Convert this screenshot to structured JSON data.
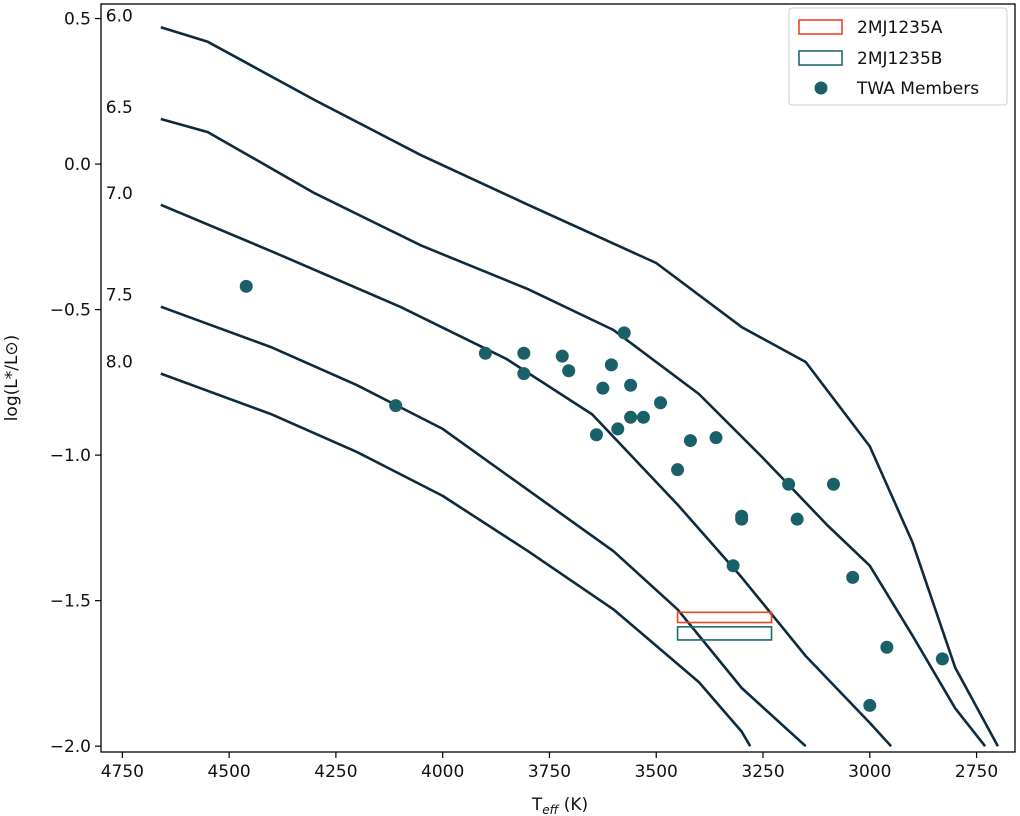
{
  "chart_data": {
    "type": "scatter",
    "xlabel_main": "T",
    "xlabel_sub": "eff",
    "xlabel_unit": " (K)",
    "ylabel": "log(L*/L⊙)",
    "xlim": [
      4800,
      2660
    ],
    "ylim": [
      -2.02,
      0.55
    ],
    "x_inverted": true,
    "xticks": [
      4750,
      4500,
      4250,
      4000,
      3750,
      3500,
      3250,
      3000,
      2750
    ],
    "yticks": [
      0.5,
      0.0,
      -0.5,
      -1.0,
      -1.5,
      -2.0
    ],
    "ytick_labels": [
      "0.5",
      "0.0",
      "−0.5",
      "−1.0",
      "−1.5",
      "−2.0"
    ],
    "grid": false,
    "legend_position": "top-right",
    "isochrones": [
      {
        "label": "6.0",
        "points": [
          [
            4660,
            0.47
          ],
          [
            4550,
            0.42
          ],
          [
            4300,
            0.22
          ],
          [
            4050,
            0.03
          ],
          [
            3800,
            -0.14
          ],
          [
            3500,
            -0.34
          ],
          [
            3300,
            -0.56
          ],
          [
            3150,
            -0.68
          ],
          [
            3000,
            -0.97
          ],
          [
            2900,
            -1.3
          ],
          [
            2800,
            -1.73
          ],
          [
            2700,
            -2.0
          ]
        ]
      },
      {
        "label": "6.5",
        "points": [
          [
            4660,
            0.155
          ],
          [
            4550,
            0.11
          ],
          [
            4300,
            -0.1
          ],
          [
            4050,
            -0.28
          ],
          [
            3800,
            -0.43
          ],
          [
            3600,
            -0.57
          ],
          [
            3400,
            -0.79
          ],
          [
            3250,
            -1.01
          ],
          [
            3100,
            -1.24
          ],
          [
            3000,
            -1.38
          ],
          [
            2900,
            -1.62
          ],
          [
            2800,
            -1.87
          ],
          [
            2730,
            -2.0
          ]
        ]
      },
      {
        "label": "7.0",
        "points": [
          [
            4660,
            -0.14
          ],
          [
            4400,
            -0.3
          ],
          [
            4100,
            -0.49
          ],
          [
            3850,
            -0.67
          ],
          [
            3650,
            -0.86
          ],
          [
            3450,
            -1.17
          ],
          [
            3300,
            -1.42
          ],
          [
            3150,
            -1.69
          ],
          [
            3000,
            -1.92
          ],
          [
            2950,
            -2.0
          ]
        ]
      },
      {
        "label": "7.5",
        "points": [
          [
            4660,
            -0.49
          ],
          [
            4400,
            -0.63
          ],
          [
            4200,
            -0.76
          ],
          [
            4000,
            -0.91
          ],
          [
            3800,
            -1.12
          ],
          [
            3600,
            -1.33
          ],
          [
            3450,
            -1.53
          ],
          [
            3300,
            -1.8
          ],
          [
            3150,
            -2.0
          ]
        ]
      },
      {
        "label": "8.0",
        "points": [
          [
            4660,
            -0.72
          ],
          [
            4400,
            -0.86
          ],
          [
            4200,
            -0.99
          ],
          [
            4000,
            -1.14
          ],
          [
            3800,
            -1.33
          ],
          [
            3600,
            -1.53
          ],
          [
            3400,
            -1.78
          ],
          [
            3300,
            -1.95
          ],
          [
            3280,
            -2.0
          ]
        ]
      }
    ],
    "series": [
      {
        "name": "2MJ1235A",
        "type": "box",
        "x_range": [
          3450,
          3230
        ],
        "y_range": [
          -1.575,
          -1.54
        ],
        "color": "#ee4422"
      },
      {
        "name": "2MJ1235B",
        "type": "box",
        "x_range": [
          3450,
          3230
        ],
        "y_range": [
          -1.635,
          -1.59
        ],
        "color": "#1d6b6e"
      },
      {
        "name": "TWA Members",
        "type": "scatter",
        "color": "#1a6068",
        "points": [
          [
            4460,
            -0.42
          ],
          [
            4110,
            -0.83
          ],
          [
            3900,
            -0.65
          ],
          [
            3810,
            -0.65
          ],
          [
            3810,
            -0.72
          ],
          [
            3720,
            -0.66
          ],
          [
            3705,
            -0.71
          ],
          [
            3640,
            -0.93
          ],
          [
            3625,
            -0.77
          ],
          [
            3605,
            -0.69
          ],
          [
            3590,
            -0.91
          ],
          [
            3575,
            -0.58
          ],
          [
            3560,
            -0.76
          ],
          [
            3560,
            -0.87
          ],
          [
            3530,
            -0.87
          ],
          [
            3490,
            -0.82
          ],
          [
            3450,
            -1.05
          ],
          [
            3420,
            -0.95
          ],
          [
            3360,
            -0.94
          ],
          [
            3320,
            -1.38
          ],
          [
            3300,
            -1.21
          ],
          [
            3300,
            -1.22
          ],
          [
            3190,
            -1.1
          ],
          [
            3170,
            -1.22
          ],
          [
            3085,
            -1.1
          ],
          [
            3040,
            -1.42
          ],
          [
            2960,
            -1.66
          ],
          [
            3000,
            -1.86
          ],
          [
            2830,
            -1.7
          ]
        ]
      }
    ]
  }
}
